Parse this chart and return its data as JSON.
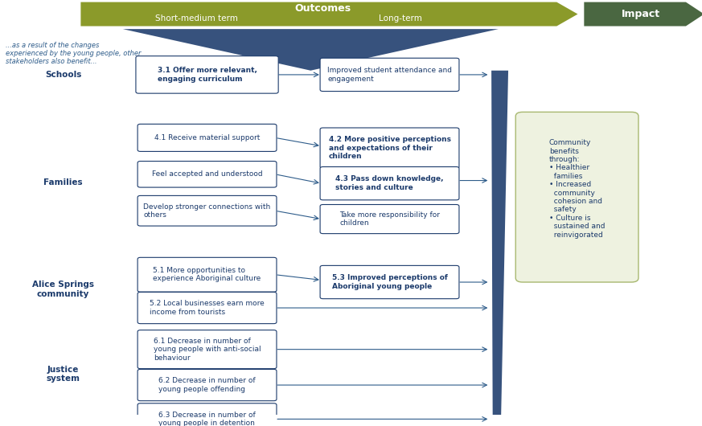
{
  "title_outcomes": "Outcomes",
  "title_impact": "Impact",
  "subtitle_short": "Short-medium term",
  "subtitle_long": "Long-term",
  "dark_blue": "#1B3A6B",
  "mid_blue": "#2E5C8A",
  "olive": "#8B9A2A",
  "dark_green": "#4A6741",
  "box_border": "#1B3A6B",
  "box_bg": "#FFFFFF",
  "impact_box_bg": "#EEF2E0",
  "impact_box_border": "#A8B870",
  "intro_text": "...as a result of the changes\nexperienced by the young people, other\nstakeholders also benefit...",
  "intro_color": "#2E5C8A",
  "category_color": "#1B3A6B",
  "box_text_color": "#1B3A6B",
  "impact_text": "Community\nbenefits\nthrough:\n• Healthier\n  families\n• Increased\n  community\n  cohesion and\n  safety\n• Culture is\n  sustained and\n  reinvigorated"
}
